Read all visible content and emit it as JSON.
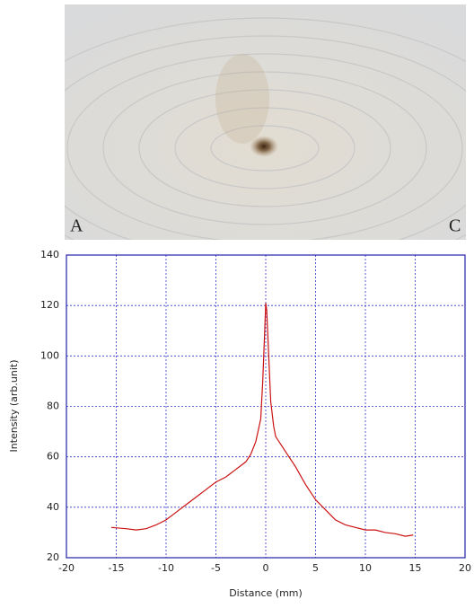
{
  "photo_labels": [
    "A",
    "C"
  ],
  "chart_data": {
    "type": "line",
    "xlabel": "Distance (mm)",
    "ylabel": "Intensity (arb.unit)",
    "xlim": [
      -20,
      20
    ],
    "ylim": [
      20,
      140
    ],
    "xticks": [
      -20,
      -15,
      -10,
      -5,
      0,
      5,
      10,
      15,
      20
    ],
    "yticks": [
      20,
      40,
      60,
      80,
      100,
      120,
      140
    ],
    "grid": true,
    "grid_color": "#3333cc",
    "frame_color": "#2222aa",
    "x": [
      -15.5,
      -14,
      -13,
      -12,
      -11,
      -10,
      -9,
      -8,
      -7,
      -6,
      -5,
      -4,
      -3,
      -2,
      -1.5,
      -1,
      -0.5,
      -0.3,
      -0.1,
      0,
      0.1,
      0.3,
      0.5,
      0.8,
      1,
      2,
      3,
      4,
      5,
      6,
      7,
      8,
      9,
      10,
      11,
      12,
      13,
      14,
      14.8
    ],
    "series": [
      {
        "color": "#cc1111",
        "values": [
          32,
          31.5,
          31,
          31.5,
          33,
          35,
          38,
          41,
          44,
          47,
          50,
          52,
          55,
          58,
          61,
          66,
          75,
          90,
          110,
          121,
          118,
          100,
          82,
          72,
          68,
          62,
          56,
          49,
          43,
          39,
          35,
          33,
          32,
          31,
          31,
          30,
          29.5,
          28.5,
          29
        ]
      }
    ]
  }
}
